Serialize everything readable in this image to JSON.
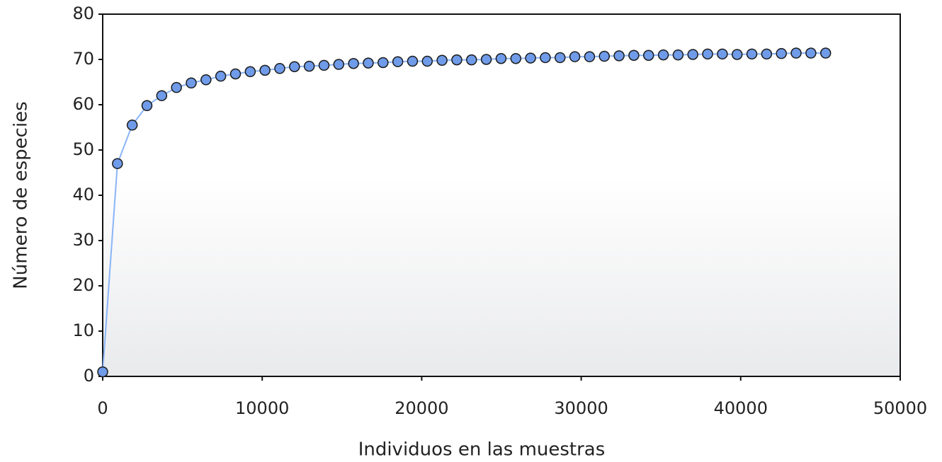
{
  "chart_data": {
    "type": "scatter-line",
    "xlabel": "Individuos en las muestras",
    "ylabel": "Número de especies",
    "x": [
      0,
      925,
      1850,
      2775,
      3700,
      4625,
      5550,
      6475,
      7400,
      8325,
      9250,
      10175,
      11100,
      12025,
      12950,
      13875,
      14800,
      15725,
      16650,
      17575,
      18500,
      19425,
      20350,
      21275,
      22200,
      23125,
      24050,
      24975,
      25900,
      26825,
      27750,
      28675,
      29600,
      30525,
      31450,
      32375,
      33300,
      34225,
      35150,
      36075,
      37000,
      37925,
      38850,
      39775,
      40700,
      41625,
      42550,
      43475,
      44400,
      45325
    ],
    "values": [
      1,
      47,
      55.5,
      59.8,
      62,
      63.8,
      64.8,
      65.5,
      66.3,
      66.8,
      67.3,
      67.6,
      68,
      68.4,
      68.5,
      68.7,
      68.9,
      69.1,
      69.2,
      69.3,
      69.5,
      69.6,
      69.6,
      69.8,
      69.9,
      69.9,
      70,
      70.2,
      70.2,
      70.3,
      70.4,
      70.4,
      70.6,
      70.6,
      70.7,
      70.8,
      70.9,
      70.9,
      71,
      71,
      71.1,
      71.2,
      71.2,
      71.1,
      71.2,
      71.2,
      71.3,
      71.4,
      71.4,
      71.4
    ],
    "color": "#6f9be8",
    "line_color": "#8ab4f8",
    "xlim": [
      0,
      50000
    ],
    "xticks": [
      0,
      10000,
      20000,
      30000,
      40000,
      50000
    ],
    "ylim": [
      0,
      80
    ],
    "yticks": [
      0,
      10,
      20,
      30,
      40,
      50,
      60,
      70,
      80
    ]
  }
}
